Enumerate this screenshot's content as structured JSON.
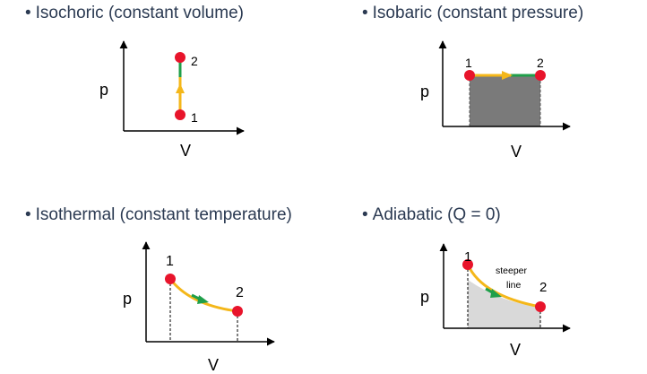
{
  "bullet": "•",
  "panels": [
    {
      "heading": "Isochoric (constant volume)",
      "axis_y": "p",
      "axis_x": "V",
      "point_1": "1",
      "point_2": "2"
    },
    {
      "heading": "Isobaric (constant pressure)",
      "axis_y": "p",
      "axis_x": "V",
      "point_1": "1",
      "point_2": "2"
    },
    {
      "heading": "Isothermal (constant temperature)",
      "axis_y": "p",
      "axis_x": "V",
      "point_1": "1",
      "point_2": "2"
    },
    {
      "heading": "Adiabatic (Q = 0)",
      "axis_y": "p",
      "axis_x": "V",
      "point_1": "1",
      "point_2": "2",
      "note_line1": "steeper",
      "note_line2": "line"
    }
  ],
  "colors": {
    "text": "#2b3a52",
    "point": "#e8142b",
    "path_yellow": "#f4b71a",
    "arrow_green": "#1f9f4a",
    "work_fill": "#7a7a7a",
    "adiabatic_fill": "#d9d9d9"
  }
}
